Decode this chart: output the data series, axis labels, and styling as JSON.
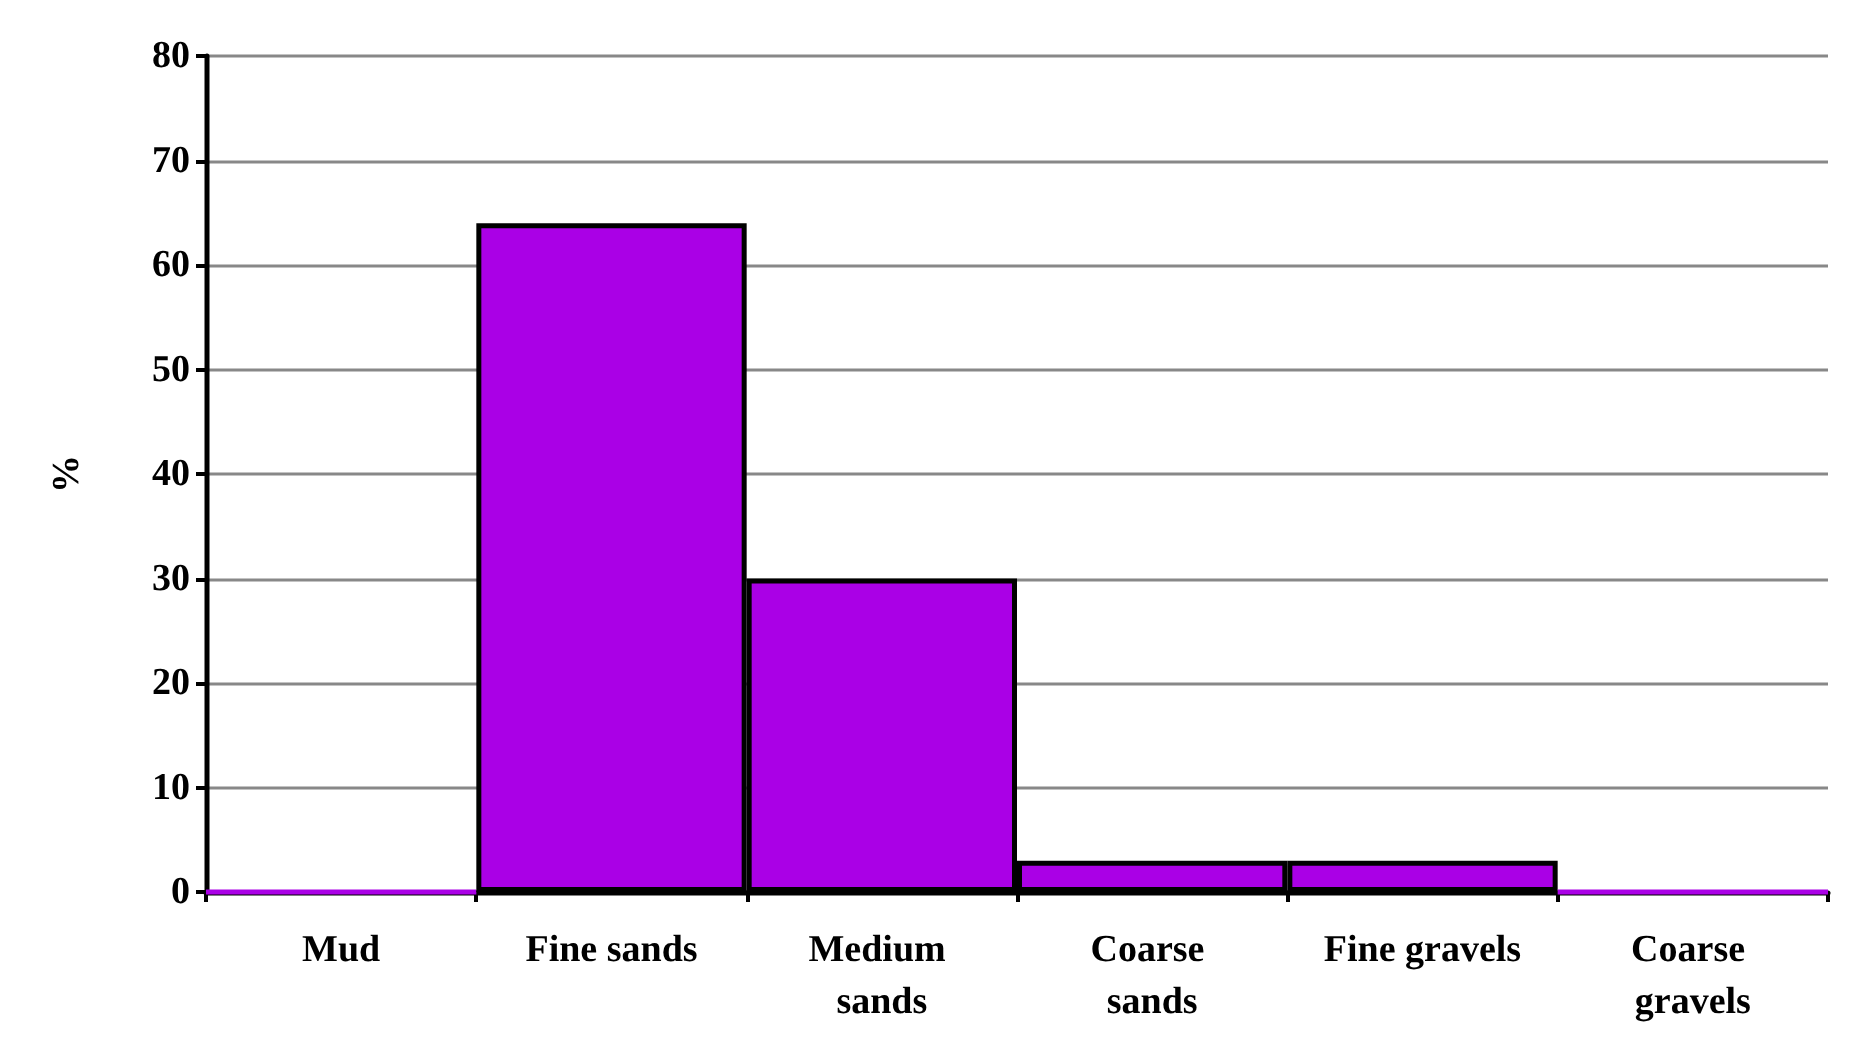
{
  "chart_data": {
    "type": "bar",
    "ylabel": "%",
    "categories": [
      "Mud",
      "Fine sands",
      "Medium sands",
      "Coarse sands",
      "Fine gravels",
      "Coarse gravels"
    ],
    "values": [
      0,
      64,
      30,
      3,
      3,
      0
    ],
    "color": "#aa00e6",
    "ylim": [
      0,
      80
    ],
    "yticks": [
      0,
      10,
      20,
      30,
      40,
      50,
      60,
      70,
      80
    ],
    "grid": "y"
  }
}
